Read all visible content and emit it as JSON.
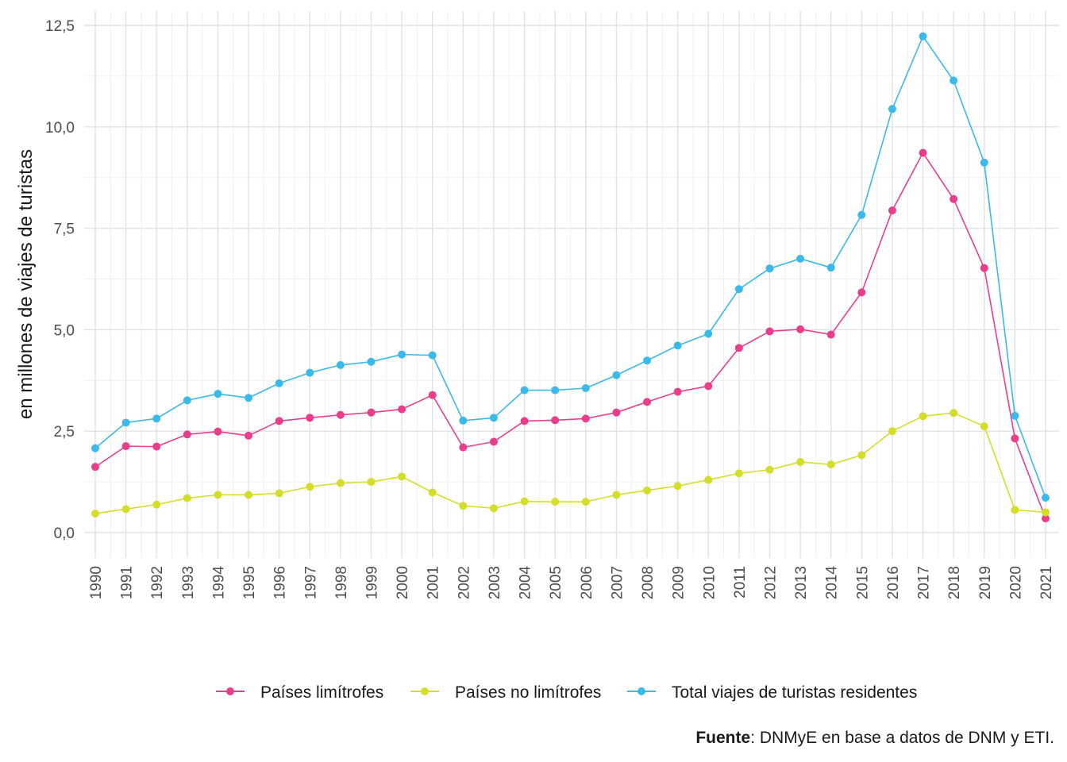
{
  "chart_data": {
    "type": "line",
    "ylabel": "en millones de viajes de turistas",
    "xlabel": "",
    "ylim": [
      0,
      12.5
    ],
    "yticks": [
      "0,0",
      "2,5",
      "5,0",
      "7,5",
      "10,0",
      "12,5"
    ],
    "ytick_values": [
      0,
      2.5,
      5,
      7.5,
      10,
      12.5
    ],
    "grid": true,
    "legend_position": "bottom",
    "x": [
      "1990",
      "1991",
      "1992",
      "1993",
      "1994",
      "1995",
      "1996",
      "1997",
      "1998",
      "1999",
      "2000",
      "2001",
      "2002",
      "2003",
      "2004",
      "2005",
      "2006",
      "2007",
      "2008",
      "2009",
      "2010",
      "2011",
      "2012",
      "2013",
      "2014",
      "2015",
      "2016",
      "2017",
      "2018",
      "2019",
      "2020",
      "2021"
    ],
    "series": [
      {
        "name": "Países limítrofes",
        "color": "#E83E8C",
        "values": [
          1.62,
          2.13,
          2.12,
          2.42,
          2.49,
          2.39,
          2.75,
          2.83,
          2.9,
          2.96,
          3.04,
          3.39,
          2.1,
          2.24,
          2.75,
          2.77,
          2.81,
          2.96,
          3.22,
          3.47,
          3.61,
          4.55,
          4.96,
          5.01,
          4.88,
          5.92,
          7.94,
          9.36,
          8.22,
          6.52,
          2.32,
          0.35
        ]
      },
      {
        "name": "Países no limítrofes",
        "color": "#D4DE29",
        "values": [
          0.47,
          0.58,
          0.69,
          0.85,
          0.93,
          0.93,
          0.97,
          1.13,
          1.22,
          1.25,
          1.38,
          0.99,
          0.66,
          0.6,
          0.77,
          0.76,
          0.76,
          0.93,
          1.04,
          1.15,
          1.3,
          1.46,
          1.55,
          1.74,
          1.68,
          1.91,
          2.5,
          2.87,
          2.95,
          2.62,
          0.56,
          0.5
        ]
      },
      {
        "name": "Total viajes de turistas residentes",
        "color": "#3BB9E8",
        "values": [
          2.08,
          2.71,
          2.81,
          3.26,
          3.42,
          3.32,
          3.68,
          3.94,
          4.13,
          4.21,
          4.39,
          4.37,
          2.76,
          2.83,
          3.51,
          3.51,
          3.56,
          3.88,
          4.24,
          4.61,
          4.9,
          6.0,
          6.51,
          6.75,
          6.53,
          7.83,
          10.44,
          12.23,
          11.14,
          9.12,
          2.88,
          0.86
        ]
      }
    ]
  },
  "source": {
    "label": "Fuente",
    "text": ": DNMyE en base a datos de DNM y ETI."
  }
}
